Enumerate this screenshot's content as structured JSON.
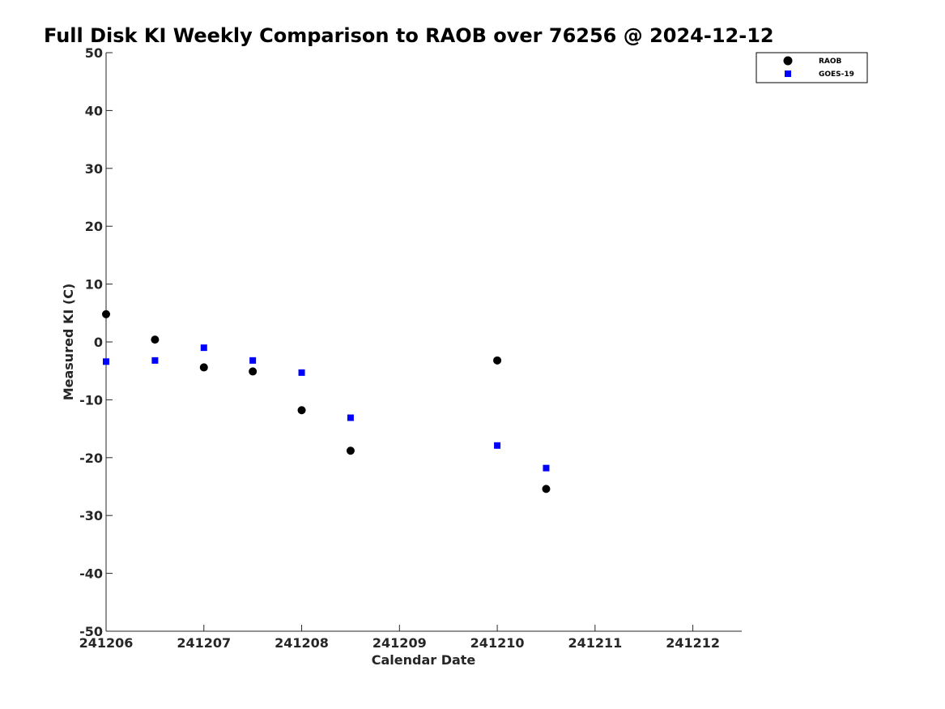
{
  "chart_data": {
    "type": "scatter",
    "title": "Full Disk KI Weekly Comparison to RAOB over 76256 @ 2024-12-12",
    "xlabel": "Calendar Date",
    "ylabel": "Measured KI (C)",
    "xlim": [
      0,
      6.5
    ],
    "ylim": [
      -50,
      50
    ],
    "x_ticks": [
      0,
      1,
      2,
      3,
      4,
      5,
      6
    ],
    "x_tick_labels": [
      "241206",
      "241207",
      "241208",
      "241209",
      "241210",
      "241211",
      "241212"
    ],
    "y_ticks": [
      50,
      40,
      30,
      20,
      10,
      0,
      -10,
      -20,
      -30,
      -40,
      -50
    ],
    "y_tick_labels": [
      "50",
      "40",
      "30",
      "20",
      "10",
      "0",
      "-10",
      "-20",
      "-30",
      "-40",
      "-50"
    ],
    "grid": false,
    "legend_position": "top-right",
    "series": [
      {
        "name": "RAOB",
        "marker": "circle",
        "color": "#000000",
        "x": [
          0,
          0.5,
          1,
          1.5,
          2,
          2.5,
          4,
          4.5
        ],
        "y": [
          4.8,
          0.4,
          -4.4,
          -5.1,
          -11.8,
          -18.8,
          -3.2,
          -25.4
        ]
      },
      {
        "name": "GOES-19",
        "marker": "square",
        "color": "#0000ff",
        "x": [
          0,
          0.5,
          1,
          1.5,
          2,
          2.5,
          4,
          4.5
        ],
        "y": [
          -3.4,
          -3.2,
          -1.0,
          -3.2,
          -5.3,
          -13.1,
          -17.9,
          -21.8
        ]
      }
    ]
  }
}
